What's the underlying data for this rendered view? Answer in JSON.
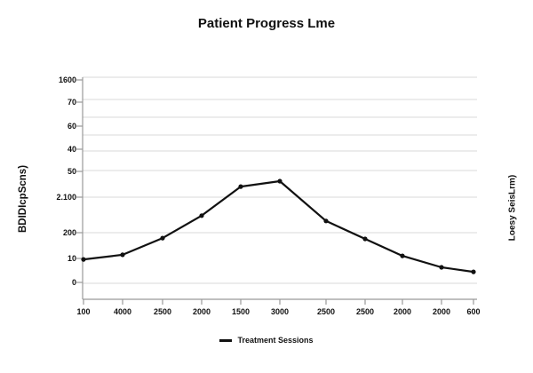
{
  "colors": {
    "background": "#ffffff",
    "text": "#111111",
    "line": "#111111",
    "marker": "#111111",
    "grid": "#d9d9d9",
    "axis": "#999999"
  },
  "chart_data": {
    "type": "line",
    "title": "Patient Progress Lme",
    "xlabel": "",
    "ylabel_left": "BDIDIcpScns)",
    "ylabel_right": "Loesy SeisLrm)",
    "categories": [
      "100",
      "4000",
      "2500",
      "2000",
      "1500",
      "3000",
      "2500",
      "2500",
      "2000",
      "2000",
      "600"
    ],
    "y_tick_labels_bottom_to_top": [
      "0",
      "10",
      "200",
      "2.100",
      "50",
      "40",
      "60",
      "70",
      "1600"
    ],
    "series": [
      {
        "name": "Treatment Sessions",
        "marker": "circle",
        "values_tick_units": [
          0.96,
          1.14,
          1.79,
          2.48,
          3.41,
          3.62,
          2.33,
          1.76,
          1.1,
          0.63,
          0.44
        ]
      }
    ],
    "grid": true,
    "legend_position": "bottom"
  }
}
